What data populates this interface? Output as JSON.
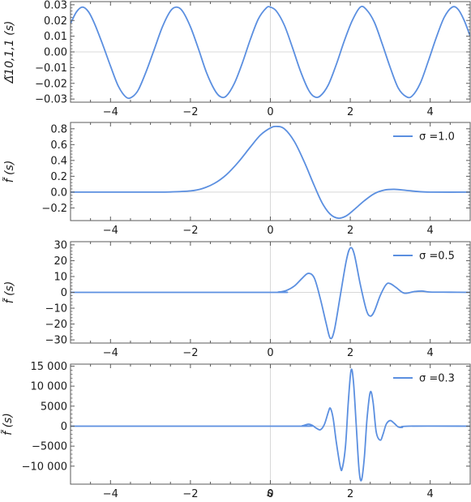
{
  "figure": {
    "xlabel": "s"
  },
  "colors": {
    "curve": "#5b8fe0",
    "frame": "#5a5a5a",
    "zero_line": "#d8d8d8"
  },
  "chart_data": [
    {
      "type": "line",
      "ylabel": "Δ̃10,1,1 (s)",
      "xlim": [
        -5,
        5
      ],
      "ylim": [
        -0.032,
        0.032
      ],
      "xticks": [
        -4,
        -2,
        0,
        2,
        4
      ],
      "xtick_labels": [
        "−4",
        "−2",
        "0",
        "2",
        "4"
      ],
      "yticks": [
        -0.03,
        -0.02,
        -0.01,
        0.0,
        0.01,
        0.02,
        0.03
      ],
      "ytick_labels": [
        "−0.03",
        "−0.02",
        "−0.01",
        "0.00",
        "0.01",
        "0.02",
        "0.03"
      ],
      "series": [
        {
          "legend": "",
          "points": [
            [
              -5,
              0.018
            ],
            [
              -4.85,
              0.0255
            ],
            [
              -4.7,
              0.0285
            ],
            [
              -4.55,
              0.0255
            ],
            [
              -4.4,
              0.018
            ],
            [
              -4.2,
              0.005
            ],
            [
              -4.0,
              -0.009
            ],
            [
              -3.8,
              -0.022
            ],
            [
              -3.6,
              -0.029
            ],
            [
              -3.45,
              -0.0285
            ],
            [
              -3.3,
              -0.024
            ],
            [
              -3.1,
              -0.012
            ],
            [
              -2.9,
              0.002
            ],
            [
              -2.7,
              0.016
            ],
            [
              -2.5,
              0.026
            ],
            [
              -2.35,
              0.0285
            ],
            [
              -2.2,
              0.026
            ],
            [
              -2.0,
              0.016
            ],
            [
              -1.8,
              0.002
            ],
            [
              -1.6,
              -0.013
            ],
            [
              -1.4,
              -0.024
            ],
            [
              -1.25,
              -0.0285
            ],
            [
              -1.1,
              -0.028
            ],
            [
              -0.9,
              -0.02
            ],
            [
              -0.7,
              -0.007
            ],
            [
              -0.5,
              0.008
            ],
            [
              -0.3,
              0.021
            ],
            [
              -0.1,
              0.028
            ],
            [
              0.0,
              0.0285
            ],
            [
              0.15,
              0.026
            ],
            [
              0.35,
              0.017
            ],
            [
              0.55,
              0.003
            ],
            [
              0.75,
              -0.012
            ],
            [
              0.95,
              -0.024
            ],
            [
              1.1,
              -0.0285
            ],
            [
              1.25,
              -0.028
            ],
            [
              1.45,
              -0.021
            ],
            [
              1.65,
              -0.008
            ],
            [
              1.85,
              0.007
            ],
            [
              2.05,
              0.02
            ],
            [
              2.25,
              0.0285
            ],
            [
              2.4,
              0.027
            ],
            [
              2.6,
              0.019
            ],
            [
              2.8,
              0.005
            ],
            [
              3.0,
              -0.01
            ],
            [
              3.2,
              -0.023
            ],
            [
              3.4,
              -0.0285
            ],
            [
              3.55,
              -0.028
            ],
            [
              3.75,
              -0.02
            ],
            [
              3.95,
              -0.006
            ],
            [
              4.15,
              0.009
            ],
            [
              4.35,
              0.022
            ],
            [
              4.55,
              0.0285
            ],
            [
              4.7,
              0.027
            ],
            [
              4.85,
              0.02
            ],
            [
              5.0,
              0.01
            ]
          ]
        }
      ]
    },
    {
      "type": "line",
      "ylabel": "f̃ (s)",
      "xlim": [
        -5,
        5
      ],
      "ylim": [
        -0.36,
        0.88
      ],
      "xticks": [
        -4,
        -2,
        0,
        2,
        4
      ],
      "xtick_labels": [
        "−4",
        "−2",
        "0",
        "2",
        "4"
      ],
      "yticks": [
        -0.2,
        0.0,
        0.2,
        0.4,
        0.6,
        0.8
      ],
      "ytick_labels": [
        "−0.2",
        "0.0",
        "0.2",
        "0.4",
        "0.6",
        "0.8"
      ],
      "series": [
        {
          "legend": "σ =1.0",
          "points": [
            [
              -5,
              0
            ],
            [
              -3,
              0
            ],
            [
              -2.5,
              0.002
            ],
            [
              -2.0,
              0.015
            ],
            [
              -1.7,
              0.045
            ],
            [
              -1.4,
              0.11
            ],
            [
              -1.1,
              0.22
            ],
            [
              -0.8,
              0.38
            ],
            [
              -0.5,
              0.57
            ],
            [
              -0.25,
              0.72
            ],
            [
              0.0,
              0.81
            ],
            [
              0.15,
              0.83
            ],
            [
              0.35,
              0.8
            ],
            [
              0.6,
              0.64
            ],
            [
              0.85,
              0.38
            ],
            [
              1.1,
              0.08
            ],
            [
              1.3,
              -0.14
            ],
            [
              1.5,
              -0.28
            ],
            [
              1.7,
              -0.33
            ],
            [
              1.9,
              -0.3
            ],
            [
              2.1,
              -0.22
            ],
            [
              2.35,
              -0.11
            ],
            [
              2.6,
              -0.02
            ],
            [
              2.85,
              0.025
            ],
            [
              3.1,
              0.035
            ],
            [
              3.4,
              0.022
            ],
            [
              3.7,
              0.007
            ],
            [
              4.0,
              0.0
            ],
            [
              5.0,
              0
            ]
          ]
        }
      ]
    },
    {
      "type": "line",
      "ylabel": "f̃ (s)",
      "xlim": [
        -5,
        5
      ],
      "ylim": [
        -32,
        32
      ],
      "xticks": [
        -4,
        -2,
        0,
        2,
        4
      ],
      "xtick_labels": [
        "−4",
        "−2",
        "0",
        "2",
        "4"
      ],
      "yticks": [
        -30,
        -20,
        -10,
        0,
        10,
        20,
        30
      ],
      "ytick_labels": [
        "−30",
        "−20",
        "−10",
        "0",
        "10",
        "20",
        "30"
      ],
      "series": [
        {
          "legend": "σ =0.5",
          "points": [
            [
              -5,
              0
            ],
            [
              0.0,
              0
            ],
            [
              0.2,
              0.2
            ],
            [
              0.4,
              1.2
            ],
            [
              0.6,
              4
            ],
            [
              0.8,
              9
            ],
            [
              0.95,
              12
            ],
            [
              1.1,
              9
            ],
            [
              1.25,
              -4
            ],
            [
              1.4,
              -20
            ],
            [
              1.5,
              -29
            ],
            [
              1.6,
              -24
            ],
            [
              1.75,
              -2
            ],
            [
              1.9,
              20
            ],
            [
              2.0,
              28
            ],
            [
              2.1,
              24
            ],
            [
              2.25,
              5
            ],
            [
              2.4,
              -11
            ],
            [
              2.5,
              -15
            ],
            [
              2.6,
              -12
            ],
            [
              2.75,
              -2
            ],
            [
              2.9,
              5
            ],
            [
              3.0,
              5.5
            ],
            [
              3.15,
              3
            ],
            [
              3.35,
              -0.5
            ],
            [
              3.6,
              0.5
            ],
            [
              3.8,
              0.8
            ],
            [
              4.0,
              0.2
            ],
            [
              4.5,
              0.1
            ],
            [
              5.0,
              0
            ]
          ]
        }
      ]
    },
    {
      "type": "line",
      "ylabel": "f̃ (s)",
      "xlim": [
        -5,
        5
      ],
      "ylim": [
        -14500,
        15500
      ],
      "xticks": [
        -4,
        -2,
        0,
        2,
        4
      ],
      "xtick_labels": [
        "−4",
        "−2",
        "0",
        "2",
        "4"
      ],
      "yticks": [
        -10000,
        -5000,
        0,
        5000,
        10000,
        15000
      ],
      "ytick_labels": [
        "−10 000",
        "−5000",
        "0",
        "5000",
        "10 000",
        "15 000"
      ],
      "series": [
        {
          "legend": "σ =0.3",
          "points": [
            [
              -5,
              0
            ],
            [
              0.6,
              0
            ],
            [
              0.8,
              100
            ],
            [
              0.95,
              500
            ],
            [
              1.05,
              200
            ],
            [
              1.15,
              -500
            ],
            [
              1.25,
              -900
            ],
            [
              1.35,
              400
            ],
            [
              1.45,
              3500
            ],
            [
              1.5,
              4500
            ],
            [
              1.57,
              2000
            ],
            [
              1.65,
              -4000
            ],
            [
              1.75,
              -10200
            ],
            [
              1.8,
              -10500
            ],
            [
              1.88,
              -5000
            ],
            [
              1.95,
              6000
            ],
            [
              2.02,
              14000
            ],
            [
              2.08,
              11000
            ],
            [
              2.15,
              0
            ],
            [
              2.22,
              -11000
            ],
            [
              2.28,
              -13500
            ],
            [
              2.35,
              -8000
            ],
            [
              2.42,
              2000
            ],
            [
              2.5,
              8500
            ],
            [
              2.57,
              6000
            ],
            [
              2.65,
              -1500
            ],
            [
              2.75,
              -3500
            ],
            [
              2.82,
              -2000
            ],
            [
              2.9,
              500
            ],
            [
              3.0,
              1400
            ],
            [
              3.1,
              700
            ],
            [
              3.2,
              -200
            ],
            [
              3.3,
              -300
            ],
            [
              3.45,
              0
            ],
            [
              5.0,
              0
            ]
          ]
        }
      ]
    }
  ]
}
